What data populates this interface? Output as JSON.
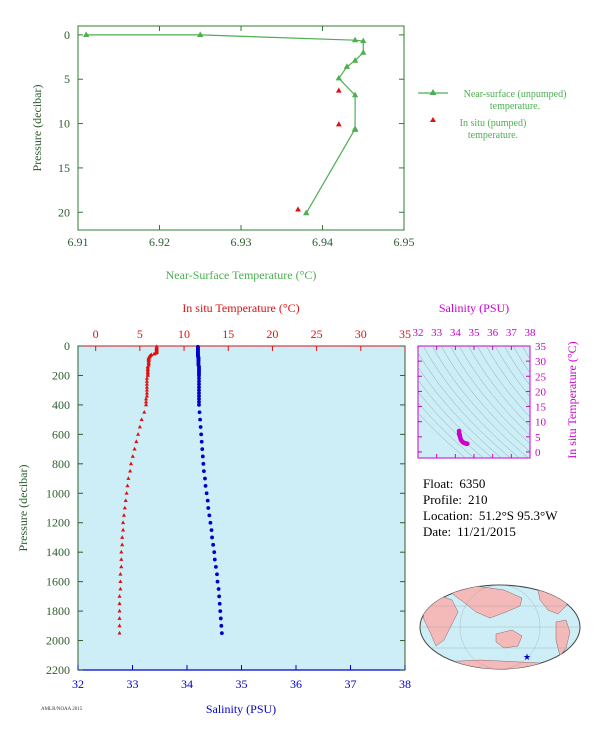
{
  "info": {
    "float_label": "Float:",
    "float_value": "6350",
    "profile_label": "Profile:",
    "profile_value": "210",
    "location_label": "Location:",
    "location_value": "51.2°S  95.3°W",
    "date_label": "Date:",
    "date_value": "11/21/2015"
  },
  "footer_text": "AMLR/NOAA 2015",
  "colors": {
    "near_surface": "#4caf50",
    "in_situ_temp": "#dd1111",
    "salinity": "#0000cc",
    "ts_magenta": "#cc00cc",
    "axis_green": "#2e5e2e",
    "plot_bg": "#cdeef7"
  },
  "chart_data": [
    {
      "id": "near_surface",
      "type": "line",
      "xlabel": "Near-Surface Temperature (°C)",
      "ylabel": "Pressure (decibar)",
      "xlim": [
        6.91,
        6.95
      ],
      "ylim": [
        22,
        -1
      ],
      "xticks": [
        "6.91",
        "6.92",
        "6.93",
        "6.94",
        "6.95"
      ],
      "yticks": [
        "0",
        "5",
        "10",
        "15",
        "20"
      ],
      "series": [
        {
          "name": "Near-surface (unpumped) temperature.",
          "x": [
            6.911,
            6.925,
            6.944,
            6.945,
            6.945,
            6.944,
            6.943,
            6.942,
            6.944,
            6.944,
            6.944,
            6.938
          ],
          "y": [
            0,
            0,
            0.6,
            0.7,
            2.0,
            2.9,
            3.6,
            4.9,
            6.8,
            10.7,
            10.6,
            20.1
          ]
        },
        {
          "name": "In situ (pumped) temperature.",
          "x": [
            6.942,
            6.942,
            6.937
          ],
          "y": [
            6.3,
            10.1,
            19.7
          ]
        }
      ]
    },
    {
      "id": "profile",
      "type": "scatter",
      "title": "In situ Temperature (°C)",
      "xlabel": "Salinity (PSU)",
      "ylabel": "Pressure (decibar)",
      "temp_lim": [
        -2,
        35
      ],
      "temp_ticks": [
        "0",
        "5",
        "10",
        "15",
        "20",
        "25",
        "30",
        "35"
      ],
      "sal_lim": [
        32,
        38
      ],
      "sal_ticks": [
        "32",
        "33",
        "34",
        "35",
        "36",
        "37",
        "38"
      ],
      "ylim": [
        2200,
        0
      ],
      "yticks": [
        "0",
        "200",
        "400",
        "600",
        "800",
        "1000",
        "1200",
        "1400",
        "1600",
        "1800",
        "2000",
        "2200"
      ],
      "series": [
        {
          "name": "In situ Temperature",
          "pressure": [
            5,
            10,
            15,
            20,
            25,
            30,
            35,
            40,
            45,
            50,
            55,
            60,
            65,
            70,
            75,
            80,
            85,
            90,
            95,
            100,
            110,
            120,
            130,
            140,
            150,
            160,
            170,
            180,
            190,
            200,
            220,
            240,
            260,
            280,
            300,
            320,
            340,
            360,
            380,
            400,
            450,
            500,
            550,
            600,
            650,
            700,
            750,
            800,
            850,
            900,
            950,
            1000,
            1050,
            1100,
            1150,
            1200,
            1250,
            1300,
            1350,
            1400,
            1450,
            1500,
            1550,
            1600,
            1650,
            1700,
            1750,
            1800,
            1850,
            1900,
            1950
          ],
          "values": [
            6.9,
            6.9,
            6.9,
            6.9,
            6.9,
            6.9,
            6.9,
            6.9,
            6.9,
            6.8,
            6.6,
            6.3,
            6.2,
            6.1,
            6.1,
            6.0,
            6.0,
            6.0,
            6.0,
            6.0,
            6.0,
            6.0,
            6.0,
            5.9,
            5.9,
            5.9,
            5.9,
            5.9,
            5.9,
            5.9,
            5.8,
            5.8,
            5.8,
            5.8,
            5.8,
            5.8,
            5.8,
            5.7,
            5.7,
            5.7,
            5.5,
            5.2,
            5.0,
            4.8,
            4.6,
            4.4,
            4.2,
            4.0,
            3.9,
            3.7,
            3.6,
            3.5,
            3.4,
            3.3,
            3.2,
            3.1,
            3.1,
            3.0,
            3.0,
            2.9,
            2.9,
            2.9,
            2.8,
            2.8,
            2.8,
            2.7,
            2.7,
            2.7,
            2.7,
            2.7,
            2.7
          ]
        },
        {
          "name": "Salinity",
          "pressure": [
            5,
            10,
            15,
            20,
            25,
            30,
            35,
            40,
            45,
            50,
            55,
            60,
            65,
            70,
            75,
            80,
            85,
            90,
            95,
            100,
            110,
            120,
            130,
            140,
            150,
            160,
            170,
            180,
            190,
            200,
            220,
            240,
            260,
            280,
            300,
            320,
            340,
            360,
            380,
            400,
            450,
            500,
            550,
            600,
            650,
            700,
            750,
            800,
            850,
            900,
            950,
            1000,
            1050,
            1100,
            1150,
            1200,
            1250,
            1300,
            1350,
            1400,
            1450,
            1500,
            1550,
            1600,
            1650,
            1700,
            1750,
            1800,
            1850,
            1900,
            1950
          ],
          "values": [
            34.2,
            34.2,
            34.2,
            34.2,
            34.2,
            34.2,
            34.2,
            34.2,
            34.2,
            34.2,
            34.2,
            34.2,
            34.2,
            34.2,
            34.21,
            34.21,
            34.21,
            34.21,
            34.21,
            34.21,
            34.21,
            34.21,
            34.21,
            34.22,
            34.22,
            34.22,
            34.22,
            34.22,
            34.22,
            34.22,
            34.22,
            34.22,
            34.22,
            34.22,
            34.22,
            34.22,
            34.22,
            34.22,
            34.22,
            34.22,
            34.23,
            34.24,
            34.25,
            34.26,
            34.27,
            34.28,
            34.29,
            34.3,
            34.31,
            34.33,
            34.34,
            34.36,
            34.38,
            34.39,
            34.41,
            34.43,
            34.45,
            34.46,
            34.48,
            34.5,
            34.51,
            34.53,
            34.55,
            34.56,
            34.58,
            34.59,
            34.6,
            34.61,
            34.62,
            34.63,
            34.64
          ]
        }
      ]
    },
    {
      "id": "ts_diagram",
      "type": "scatter",
      "title": "Salinity (PSU)",
      "ylabel": "In situ Temperature (°C)",
      "xlim": [
        32,
        38
      ],
      "ylim": [
        -2,
        35
      ],
      "xticks": [
        "32",
        "33",
        "34",
        "35",
        "36",
        "37",
        "38"
      ],
      "yticks": [
        "0",
        "5",
        "10",
        "15",
        "20",
        "25",
        "30",
        "35"
      ],
      "points": {
        "salinity": [
          34.2,
          34.2,
          34.21,
          34.22,
          34.22,
          34.22,
          34.23,
          34.25,
          34.28,
          34.31,
          34.36,
          34.41,
          34.46,
          34.51,
          34.56,
          34.6,
          34.64
        ],
        "temperature": [
          6.9,
          6.0,
          6.0,
          5.9,
          5.8,
          5.7,
          5.5,
          5.0,
          4.4,
          3.9,
          3.5,
          3.2,
          3.0,
          2.9,
          2.8,
          2.7,
          2.7
        ]
      }
    }
  ],
  "map": {
    "float_marker": "star",
    "lat": -51.2,
    "lon": -95.3
  }
}
